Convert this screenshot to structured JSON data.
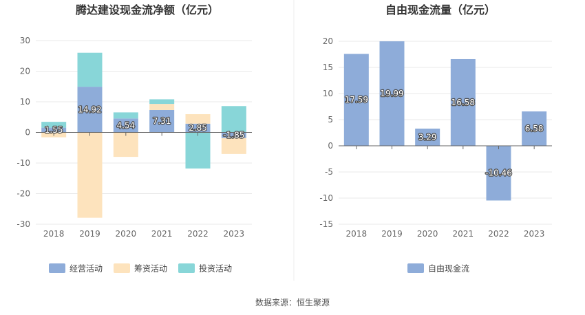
{
  "source": "数据来源：恒生聚源",
  "chart_data": [
    {
      "type": "bar",
      "stacked": true,
      "title": "腾达建设现金流净额（亿元）",
      "categories": [
        "2018",
        "2019",
        "2020",
        "2021",
        "2022",
        "2023"
      ],
      "ylim": [
        -30,
        30
      ],
      "yticks": [
        30,
        20,
        10,
        0,
        -10,
        -20,
        -30
      ],
      "grid": true,
      "legend": "bottom",
      "series": [
        {
          "name": "经营活动",
          "color": "#8eacd9",
          "values": [
            1.55,
            14.92,
            4.54,
            7.31,
            2.85,
            -1.85
          ]
        },
        {
          "name": "筹资活动",
          "color": "#fde3bd",
          "values": [
            -1.6,
            -27.9,
            -8.0,
            2.0,
            3.1,
            -5.2
          ]
        },
        {
          "name": "投资活动",
          "color": "#88d6d8",
          "values": [
            1.9,
            11.1,
            2.0,
            1.5,
            -11.8,
            8.6
          ]
        }
      ],
      "data_labels": [
        "1.55",
        "14.92",
        "4.54",
        "7.31",
        "2.85",
        "-1.85"
      ]
    },
    {
      "type": "bar",
      "title": "自由现金流量（亿元）",
      "categories": [
        "2018",
        "2019",
        "2020",
        "2021",
        "2022",
        "2023"
      ],
      "ylim": [
        -15,
        20
      ],
      "yticks": [
        20,
        15,
        10,
        5,
        0,
        -5,
        -10,
        -15
      ],
      "grid": true,
      "legend": "bottom",
      "series": [
        {
          "name": "自由现金流",
          "color": "#8eacd9",
          "values": [
            17.59,
            19.99,
            3.29,
            16.58,
            -10.46,
            6.58
          ]
        }
      ],
      "data_labels": [
        "17.59",
        "19.99",
        "3.29",
        "16.58",
        "-10.46",
        "6.58"
      ]
    }
  ]
}
